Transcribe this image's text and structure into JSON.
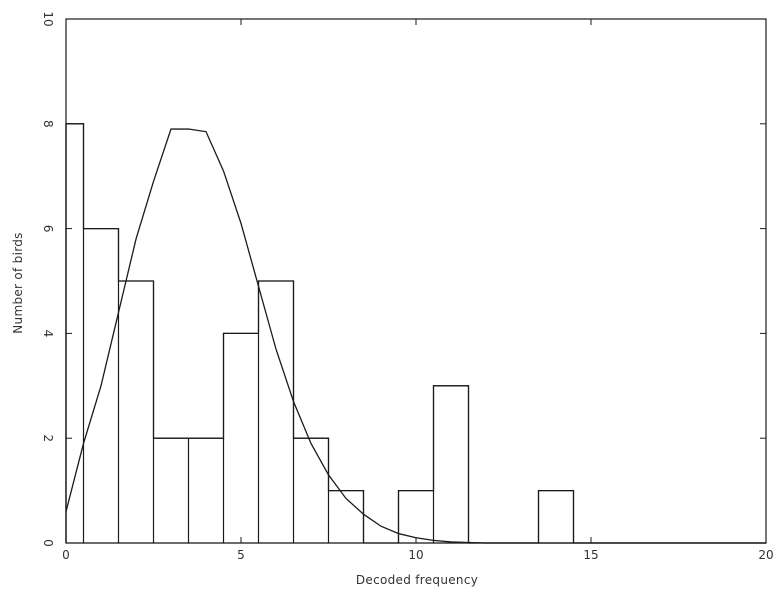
{
  "chart_data": {
    "type": "bar",
    "title": "",
    "xlabel": "Decoded frequency",
    "ylabel": "Number of birds",
    "xlim": [
      0,
      20
    ],
    "ylim": [
      0,
      10
    ],
    "grid": false,
    "legend": "none",
    "xticks": [
      0,
      5,
      10,
      15,
      20
    ],
    "yticks": [
      0,
      2,
      4,
      6,
      8,
      10
    ],
    "xtick_labels": [
      "0",
      "5",
      "10",
      "15",
      "20"
    ],
    "ytick_labels": [
      "0",
      "2",
      "4",
      "6",
      "8",
      "10"
    ],
    "histogram": {
      "bin_centers": [
        0,
        1,
        2,
        3,
        4,
        5,
        6,
        7,
        8,
        9,
        10,
        11,
        12,
        13,
        14,
        15,
        16,
        17,
        18,
        19,
        20
      ],
      "counts": [
        8,
        6,
        5,
        2,
        2,
        4,
        5,
        2,
        1,
        0,
        1,
        3,
        0,
        0,
        1,
        0,
        0,
        0,
        0,
        0,
        0
      ],
      "bin_width": 1
    },
    "fitted_curve": {
      "x": [
        0,
        0.5,
        1,
        1.5,
        2,
        2.5,
        3,
        3.5,
        4,
        4.5,
        5,
        5.5,
        6,
        6.5,
        7,
        7.5,
        8,
        8.5,
        9,
        9.5,
        10,
        10.5,
        11,
        11.5,
        12,
        13,
        14,
        15,
        16,
        17,
        18,
        19,
        20
      ],
      "y": [
        0.6,
        1.9,
        3.0,
        4.4,
        5.8,
        6.9,
        7.9,
        7.9,
        7.85,
        7.1,
        6.1,
        4.9,
        3.7,
        2.7,
        1.9,
        1.3,
        0.85,
        0.55,
        0.32,
        0.18,
        0.1,
        0.05,
        0.02,
        0.01,
        0.0,
        0.0,
        0.0,
        0.0,
        0.0,
        0.0,
        0.0,
        0.0,
        0.0
      ]
    },
    "colors": {
      "line": "#1a1a1a",
      "axis": "#1a1a1a",
      "text": "#333333",
      "background": "#ffffff"
    }
  }
}
